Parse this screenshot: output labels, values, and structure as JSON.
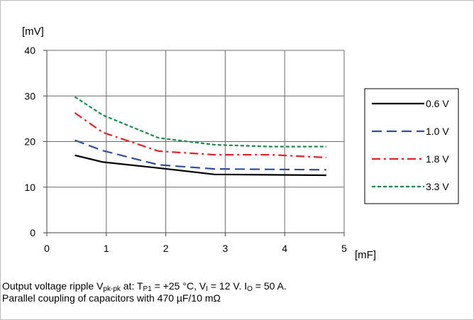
{
  "chart_data": {
    "type": "line",
    "xlabel": "[mF]",
    "ylabel": "[mV]",
    "xlim": [
      0,
      5
    ],
    "ylim": [
      0,
      40
    ],
    "x_ticks": [
      "0",
      "1",
      "2",
      "3",
      "4",
      "5"
    ],
    "y_ticks": [
      "0",
      "10",
      "20",
      "30",
      "40"
    ],
    "grid": true,
    "legend_position": "right",
    "series": [
      {
        "name": "0.6 V",
        "color": "#000000",
        "dash": "solid",
        "x": [
          0.47,
          0.94,
          1.88,
          2.82,
          3.76,
          4.7
        ],
        "y": [
          17.0,
          15.5,
          14.2,
          12.8,
          12.7,
          12.6
        ]
      },
      {
        "name": "1.0 V",
        "color": "#2f4f9e",
        "dash": "long-dash",
        "x": [
          0.47,
          0.94,
          1.88,
          2.82,
          3.76,
          4.7
        ],
        "y": [
          20.3,
          18.0,
          14.9,
          14.0,
          13.9,
          13.8
        ]
      },
      {
        "name": "1.8 V",
        "color": "#e8202a",
        "dash": "dash-dot",
        "x": [
          0.47,
          0.94,
          1.88,
          2.82,
          3.76,
          4.7
        ],
        "y": [
          26.3,
          22.0,
          17.9,
          17.1,
          17.1,
          16.5
        ]
      },
      {
        "name": "3.3 V",
        "color": "#1a8a50",
        "dash": "short-dash",
        "x": [
          0.47,
          0.94,
          1.88,
          2.82,
          3.76,
          4.7
        ],
        "y": [
          29.8,
          25.8,
          20.8,
          19.3,
          18.9,
          18.9
        ]
      }
    ]
  },
  "caption": {
    "line1_a": "Output voltage ripple V",
    "line1_sub1": "pk-pk",
    "line1_b": " at: T",
    "line1_sub2": "P1",
    "line1_c": " = +25 °C, V",
    "line1_sub3": "I",
    "line1_d": " = 12 V. I",
    "line1_sub4": "O",
    "line1_e": " = 50 A.",
    "line2": "Parallel coupling of capacitors with 470 µF/10 mΩ"
  }
}
